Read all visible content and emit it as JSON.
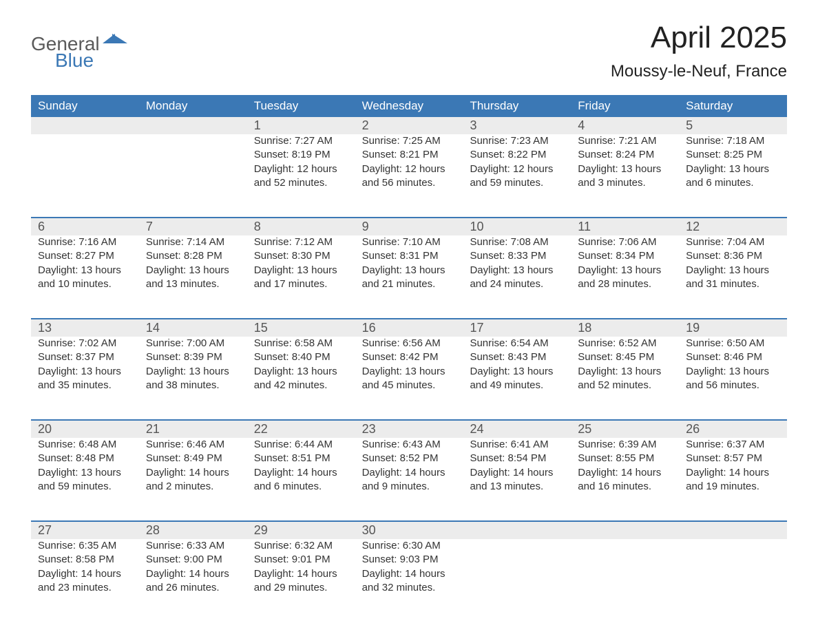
{
  "brand": {
    "word1": "General",
    "word2": "Blue"
  },
  "title": "April 2025",
  "location": "Moussy-le-Neuf, France",
  "colors": {
    "header_bg": "#3b78b5",
    "header_text": "#ffffff",
    "daynum_bg": "#ececec",
    "daynum_border": "#3b78b5",
    "text": "#333333",
    "background": "#ffffff"
  },
  "typography": {
    "title_fontsize": 44,
    "location_fontsize": 24,
    "dow_fontsize": 17,
    "daynum_fontsize": 18,
    "body_fontsize": 15
  },
  "days_of_week": [
    "Sunday",
    "Monday",
    "Tuesday",
    "Wednesday",
    "Thursday",
    "Friday",
    "Saturday"
  ],
  "weeks": [
    [
      {
        "n": "",
        "lines": [
          "",
          "",
          "",
          ""
        ]
      },
      {
        "n": "",
        "lines": [
          "",
          "",
          "",
          ""
        ]
      },
      {
        "n": "1",
        "lines": [
          "Sunrise: 7:27 AM",
          "Sunset: 8:19 PM",
          "Daylight: 12 hours",
          "and 52 minutes."
        ]
      },
      {
        "n": "2",
        "lines": [
          "Sunrise: 7:25 AM",
          "Sunset: 8:21 PM",
          "Daylight: 12 hours",
          "and 56 minutes."
        ]
      },
      {
        "n": "3",
        "lines": [
          "Sunrise: 7:23 AM",
          "Sunset: 8:22 PM",
          "Daylight: 12 hours",
          "and 59 minutes."
        ]
      },
      {
        "n": "4",
        "lines": [
          "Sunrise: 7:21 AM",
          "Sunset: 8:24 PM",
          "Daylight: 13 hours",
          "and 3 minutes."
        ]
      },
      {
        "n": "5",
        "lines": [
          "Sunrise: 7:18 AM",
          "Sunset: 8:25 PM",
          "Daylight: 13 hours",
          "and 6 minutes."
        ]
      }
    ],
    [
      {
        "n": "6",
        "lines": [
          "Sunrise: 7:16 AM",
          "Sunset: 8:27 PM",
          "Daylight: 13 hours",
          "and 10 minutes."
        ]
      },
      {
        "n": "7",
        "lines": [
          "Sunrise: 7:14 AM",
          "Sunset: 8:28 PM",
          "Daylight: 13 hours",
          "and 13 minutes."
        ]
      },
      {
        "n": "8",
        "lines": [
          "Sunrise: 7:12 AM",
          "Sunset: 8:30 PM",
          "Daylight: 13 hours",
          "and 17 minutes."
        ]
      },
      {
        "n": "9",
        "lines": [
          "Sunrise: 7:10 AM",
          "Sunset: 8:31 PM",
          "Daylight: 13 hours",
          "and 21 minutes."
        ]
      },
      {
        "n": "10",
        "lines": [
          "Sunrise: 7:08 AM",
          "Sunset: 8:33 PM",
          "Daylight: 13 hours",
          "and 24 minutes."
        ]
      },
      {
        "n": "11",
        "lines": [
          "Sunrise: 7:06 AM",
          "Sunset: 8:34 PM",
          "Daylight: 13 hours",
          "and 28 minutes."
        ]
      },
      {
        "n": "12",
        "lines": [
          "Sunrise: 7:04 AM",
          "Sunset: 8:36 PM",
          "Daylight: 13 hours",
          "and 31 minutes."
        ]
      }
    ],
    [
      {
        "n": "13",
        "lines": [
          "Sunrise: 7:02 AM",
          "Sunset: 8:37 PM",
          "Daylight: 13 hours",
          "and 35 minutes."
        ]
      },
      {
        "n": "14",
        "lines": [
          "Sunrise: 7:00 AM",
          "Sunset: 8:39 PM",
          "Daylight: 13 hours",
          "and 38 minutes."
        ]
      },
      {
        "n": "15",
        "lines": [
          "Sunrise: 6:58 AM",
          "Sunset: 8:40 PM",
          "Daylight: 13 hours",
          "and 42 minutes."
        ]
      },
      {
        "n": "16",
        "lines": [
          "Sunrise: 6:56 AM",
          "Sunset: 8:42 PM",
          "Daylight: 13 hours",
          "and 45 minutes."
        ]
      },
      {
        "n": "17",
        "lines": [
          "Sunrise: 6:54 AM",
          "Sunset: 8:43 PM",
          "Daylight: 13 hours",
          "and 49 minutes."
        ]
      },
      {
        "n": "18",
        "lines": [
          "Sunrise: 6:52 AM",
          "Sunset: 8:45 PM",
          "Daylight: 13 hours",
          "and 52 minutes."
        ]
      },
      {
        "n": "19",
        "lines": [
          "Sunrise: 6:50 AM",
          "Sunset: 8:46 PM",
          "Daylight: 13 hours",
          "and 56 minutes."
        ]
      }
    ],
    [
      {
        "n": "20",
        "lines": [
          "Sunrise: 6:48 AM",
          "Sunset: 8:48 PM",
          "Daylight: 13 hours",
          "and 59 minutes."
        ]
      },
      {
        "n": "21",
        "lines": [
          "Sunrise: 6:46 AM",
          "Sunset: 8:49 PM",
          "Daylight: 14 hours",
          "and 2 minutes."
        ]
      },
      {
        "n": "22",
        "lines": [
          "Sunrise: 6:44 AM",
          "Sunset: 8:51 PM",
          "Daylight: 14 hours",
          "and 6 minutes."
        ]
      },
      {
        "n": "23",
        "lines": [
          "Sunrise: 6:43 AM",
          "Sunset: 8:52 PM",
          "Daylight: 14 hours",
          "and 9 minutes."
        ]
      },
      {
        "n": "24",
        "lines": [
          "Sunrise: 6:41 AM",
          "Sunset: 8:54 PM",
          "Daylight: 14 hours",
          "and 13 minutes."
        ]
      },
      {
        "n": "25",
        "lines": [
          "Sunrise: 6:39 AM",
          "Sunset: 8:55 PM",
          "Daylight: 14 hours",
          "and 16 minutes."
        ]
      },
      {
        "n": "26",
        "lines": [
          "Sunrise: 6:37 AM",
          "Sunset: 8:57 PM",
          "Daylight: 14 hours",
          "and 19 minutes."
        ]
      }
    ],
    [
      {
        "n": "27",
        "lines": [
          "Sunrise: 6:35 AM",
          "Sunset: 8:58 PM",
          "Daylight: 14 hours",
          "and 23 minutes."
        ]
      },
      {
        "n": "28",
        "lines": [
          "Sunrise: 6:33 AM",
          "Sunset: 9:00 PM",
          "Daylight: 14 hours",
          "and 26 minutes."
        ]
      },
      {
        "n": "29",
        "lines": [
          "Sunrise: 6:32 AM",
          "Sunset: 9:01 PM",
          "Daylight: 14 hours",
          "and 29 minutes."
        ]
      },
      {
        "n": "30",
        "lines": [
          "Sunrise: 6:30 AM",
          "Sunset: 9:03 PM",
          "Daylight: 14 hours",
          "and 32 minutes."
        ]
      },
      {
        "n": "",
        "lines": [
          "",
          "",
          "",
          ""
        ]
      },
      {
        "n": "",
        "lines": [
          "",
          "",
          "",
          ""
        ]
      },
      {
        "n": "",
        "lines": [
          "",
          "",
          "",
          ""
        ]
      }
    ]
  ]
}
